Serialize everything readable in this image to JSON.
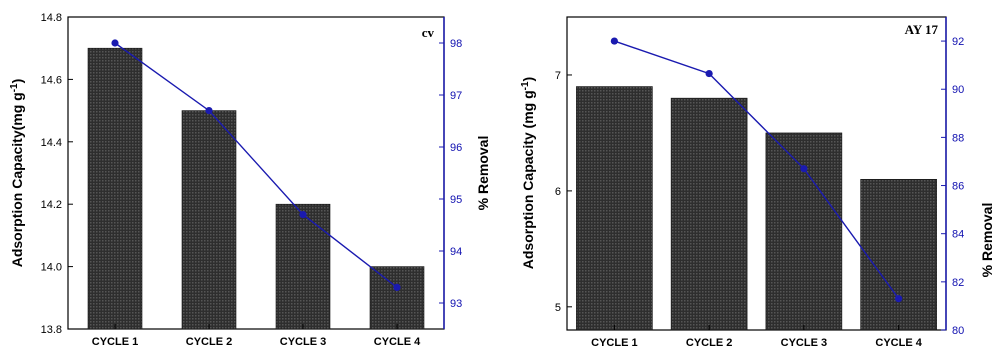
{
  "chart_data": [
    {
      "type": "bar",
      "corner_label": "cv",
      "categories": [
        "CYCLE 1",
        "CYCLE 2",
        "CYCLE 3",
        "CYCLE 4"
      ],
      "series": [
        {
          "name": "",
          "axis": "left",
          "type": "bar",
          "values": [
            14.7,
            14.5,
            14.2,
            14.0
          ]
        },
        {
          "name": "",
          "axis": "right",
          "type": "line",
          "values": [
            98.0,
            96.7,
            94.7,
            93.3
          ]
        }
      ],
      "ylabel": "Adsorption Capacity(mg g",
      "ylabel_sup": "-1",
      "ylabel_close": ")",
      "ylim": [
        13.8,
        14.8
      ],
      "yticks": [
        "13.8",
        "14.0",
        "14.2",
        "14.4",
        "14.6",
        "14.8"
      ],
      "y2label": "% Removal",
      "y2lim": [
        92.5,
        98.5
      ],
      "y2ticks": [
        "93",
        "94",
        "95",
        "96",
        "97",
        "98"
      ],
      "bar_color": "#3a3a3a",
      "line_color": "#1a1ab0"
    },
    {
      "type": "bar",
      "corner_label": "AY 17",
      "categories": [
        "CYCLE 1",
        "CYCLE 2",
        "CYCLE 3",
        "CYCLE 4"
      ],
      "series": [
        {
          "name": "",
          "axis": "left",
          "type": "bar",
          "values": [
            6.9,
            6.8,
            6.5,
            6.1
          ]
        },
        {
          "name": "",
          "axis": "right",
          "type": "line",
          "values": [
            92.0,
            90.65,
            86.7,
            81.3
          ]
        }
      ],
      "ylabel": "Adsorption Capacity (mg g",
      "ylabel_sup": "-1",
      "ylabel_close": ")",
      "ylim": [
        4.8,
        7.5
      ],
      "yticks": [
        "5",
        "6",
        "7"
      ],
      "y2label": "% Removal",
      "y2lim": [
        80,
        93
      ],
      "y2ticks": [
        "80",
        "82",
        "84",
        "86",
        "88",
        "90",
        "92"
      ],
      "bar_color": "#3a3a3a",
      "line_color": "#1a1ab0"
    }
  ]
}
